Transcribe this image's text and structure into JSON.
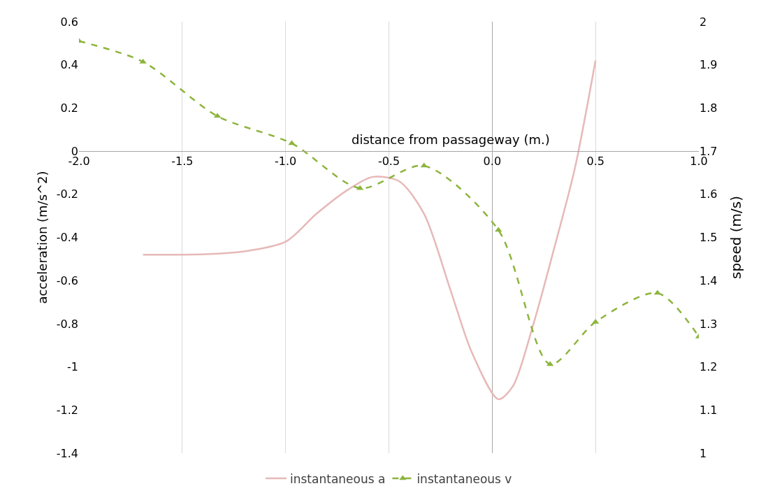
{
  "chart_data": {
    "type": "line",
    "xlabel": "distance from passageway (m.)",
    "ylabel": "acceleration (m/s^2)",
    "y2label": "speed (m/s)",
    "xlim": [
      -2.0,
      1.0
    ],
    "xticks": [
      {
        "value": -2.0,
        "label": "-2.0"
      },
      -1.5,
      {
        "value": -1.0,
        "label": "-1.0"
      },
      -0.5,
      {
        "value": 0,
        "label": "0.0"
      },
      0.5,
      {
        "value": 1.0,
        "label": "1.0"
      }
    ],
    "ylim": [
      -1.4,
      0.6
    ],
    "yticks": [
      -1.4,
      -1.2,
      -1,
      -0.8,
      -0.6,
      -0.4,
      -0.2,
      0,
      0.2,
      0.4,
      0.6
    ],
    "y2lim": [
      1,
      2
    ],
    "y2ticks": [
      1,
      1.1,
      1.2,
      1.3,
      1.4,
      1.5,
      1.6,
      1.7,
      1.8,
      1.9,
      2
    ],
    "grid": "x",
    "legend": "bottom",
    "series": [
      {
        "name": "instantaneous a",
        "color": "#e6b9b8",
        "marker": "none",
        "line_style": "solid",
        "x": [
          -1.69,
          -1.5,
          -1.33,
          -1.2,
          -1.0,
          -0.85,
          -0.7,
          -0.58,
          -0.45,
          -0.33,
          -0.2,
          -0.1,
          0.03,
          0.1,
          0.2,
          0.3,
          0.4,
          0.5
        ],
        "values": [
          -0.48,
          -0.48,
          -0.475,
          -0.465,
          -0.42,
          -0.29,
          -0.18,
          -0.12,
          -0.14,
          -0.29,
          -0.65,
          -0.93,
          -1.15,
          -1.09,
          -0.8,
          -0.45,
          -0.08,
          0.42
        ]
      },
      {
        "name": "instantaneous v",
        "color": "#8db43e",
        "marker": "triangle",
        "line_style": "dashed",
        "axis": "y2",
        "x": [
          -2.0,
          -1.69,
          -1.33,
          -0.97,
          -0.64,
          -0.33,
          0.03,
          0.28,
          0.5,
          0.8,
          1.0
        ],
        "values": [
          1.955,
          1.907,
          1.781,
          1.718,
          1.614,
          1.666,
          1.517,
          1.206,
          1.304,
          1.371,
          1.27
        ]
      }
    ]
  }
}
